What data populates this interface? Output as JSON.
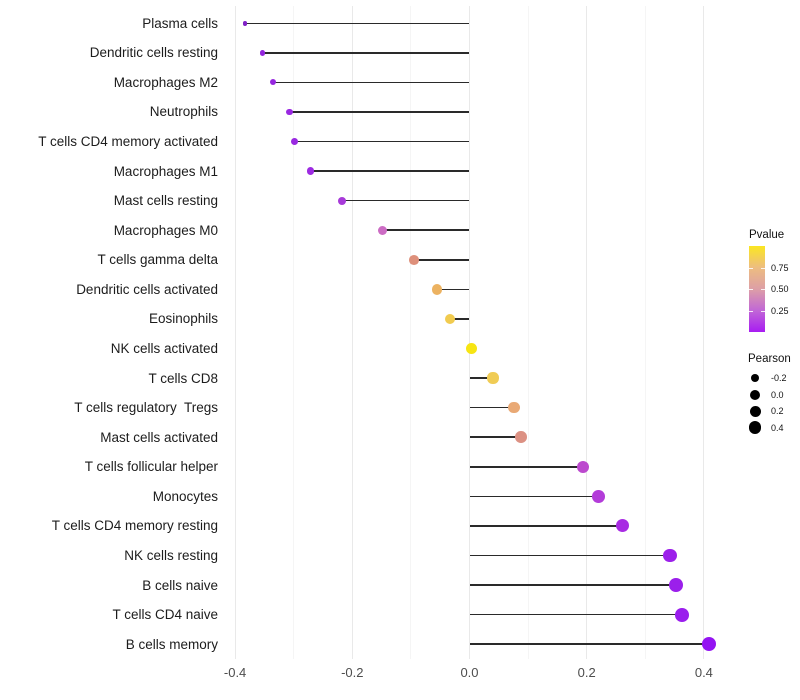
{
  "chart_data": {
    "type": "scatter",
    "variant": "lollipop",
    "orientation": "horizontal",
    "title": "",
    "xlabel": "",
    "ylabel": "",
    "xlim": [
      -0.45,
      0.46
    ],
    "x_tick_labels": [
      "-0.4",
      "-0.2",
      "0.0",
      "0.2",
      "0.4"
    ],
    "x_tick_values": [
      -0.4,
      -0.2,
      0.0,
      0.2,
      0.4
    ],
    "x_minor_values": [
      -0.3,
      -0.1,
      0.1,
      0.3
    ],
    "grid": "vertical major and minor gridlines, light gray on white, no axis lines",
    "color_encodes": "Pvalue",
    "size_encodes": "Pearson",
    "points": [
      {
        "label": "Plasma cells",
        "pearson": -0.383,
        "color": "#8021C6"
      },
      {
        "label": "Dendritic cells resting",
        "pearson": -0.353,
        "color": "#9326DC"
      },
      {
        "label": "Macrophages M2",
        "pearson": -0.336,
        "color": "#9627DF"
      },
      {
        "label": "Neutrophils",
        "pearson": -0.307,
        "color": "#9928E1"
      },
      {
        "label": "T cells CD4 memory activated",
        "pearson": -0.299,
        "color": "#9929E1"
      },
      {
        "label": "Macrophages M1",
        "pearson": -0.271,
        "color": "#9D2BE2"
      },
      {
        "label": "Mast cells resting",
        "pearson": -0.218,
        "color": "#A73AD9"
      },
      {
        "label": "Macrophages M0",
        "pearson": -0.148,
        "color": "#CC6CC4"
      },
      {
        "label": "T cells gamma delta",
        "pearson": -0.095,
        "color": "#DE907B"
      },
      {
        "label": "Dendritic cells activated",
        "pearson": -0.055,
        "color": "#ECB261"
      },
      {
        "label": "Eosinophils",
        "pearson": -0.033,
        "color": "#F1CB4F"
      },
      {
        "label": "NK cells activated",
        "pearson": 0.003,
        "color": "#F7E513"
      },
      {
        "label": "T cells CD8",
        "pearson": 0.04,
        "color": "#F0CC55"
      },
      {
        "label": "T cells regulatory  Tregs",
        "pearson": 0.076,
        "color": "#E9A975"
      },
      {
        "label": "Mast cells activated",
        "pearson": 0.088,
        "color": "#DC9183"
      },
      {
        "label": "T cells follicular helper",
        "pearson": 0.194,
        "color": "#BC49CE"
      },
      {
        "label": "Monocytes",
        "pearson": 0.22,
        "color": "#B33CD9"
      },
      {
        "label": "T cells CD4 memory resting",
        "pearson": 0.261,
        "color": "#A82BE3"
      },
      {
        "label": "NK cells resting",
        "pearson": 0.342,
        "color": "#9C20EA"
      },
      {
        "label": "B cells naive",
        "pearson": 0.353,
        "color": "#9B1FEB"
      },
      {
        "label": "T cells CD4 naive",
        "pearson": 0.363,
        "color": "#9A1DED"
      },
      {
        "label": "B cells memory",
        "pearson": 0.409,
        "color": "#9414F2"
      }
    ],
    "legend": {
      "position": "right",
      "pvalue": {
        "title": "Pvalue",
        "tick_labels": [
          "0.75",
          "0.50",
          "0.25"
        ],
        "range_bottom_to_top": [
          0,
          1
        ],
        "gradient_bottom_to_top": [
          "#A81CF2",
          "#C167D6",
          "#DD9FA6",
          "#EDBD80",
          "#FBE621"
        ]
      },
      "pearson": {
        "title": "Pearson",
        "dot_color": "#000000",
        "items": [
          {
            "label": "-0.2",
            "diameter": 8.5
          },
          {
            "label": "0.0",
            "diameter": 10
          },
          {
            "label": "0.2",
            "diameter": 11
          },
          {
            "label": "0.4",
            "diameter": 12.5
          }
        ]
      }
    }
  }
}
